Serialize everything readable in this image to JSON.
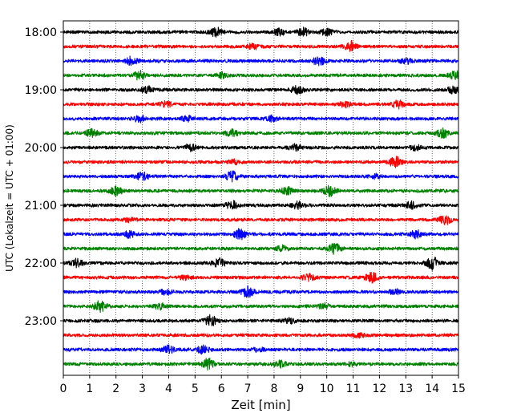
{
  "chart_data": {
    "type": "line",
    "title": "",
    "xlabel": "Zeit  [min]",
    "ylabel": "UTC (Lokalzeit = UTC + 01:00)",
    "xlim": [
      0,
      15
    ],
    "xticks": [
      0,
      1,
      2,
      3,
      4,
      5,
      6,
      7,
      8,
      9,
      10,
      11,
      12,
      13,
      14,
      15
    ],
    "x_grid": true,
    "y_grid": false,
    "yticks": [
      {
        "label": "18:00",
        "trace": 0
      },
      {
        "label": "19:00",
        "trace": 4
      },
      {
        "label": "20:00",
        "trace": 8
      },
      {
        "label": "21:00",
        "trace": 12
      },
      {
        "label": "22:00",
        "trace": 16
      },
      {
        "label": "23:00",
        "trace": 20
      }
    ],
    "trace_colors": [
      "#000000",
      "#ff0000",
      "#0000ff",
      "#008000"
    ],
    "traces": [
      {
        "color": "#000000",
        "bursts": [
          [
            5.8,
            0.7
          ],
          [
            8.2,
            0.5
          ],
          [
            9.1,
            0.6
          ],
          [
            10.0,
            0.5
          ]
        ]
      },
      {
        "color": "#ff0000",
        "bursts": [
          [
            10.9,
            0.8
          ],
          [
            7.2,
            0.4
          ]
        ]
      },
      {
        "color": "#0000ff",
        "bursts": [
          [
            2.6,
            0.6
          ],
          [
            9.7,
            0.7
          ],
          [
            13.0,
            0.4
          ]
        ]
      },
      {
        "color": "#008000",
        "bursts": [
          [
            2.9,
            0.7
          ],
          [
            6.0,
            0.4
          ],
          [
            14.9,
            0.6
          ]
        ]
      },
      {
        "color": "#000000",
        "bursts": [
          [
            3.2,
            0.5
          ],
          [
            8.9,
            0.6
          ],
          [
            14.8,
            0.5
          ]
        ]
      },
      {
        "color": "#ff0000",
        "bursts": [
          [
            3.9,
            0.4
          ],
          [
            10.7,
            0.4
          ],
          [
            12.7,
            0.6
          ]
        ]
      },
      {
        "color": "#0000ff",
        "bursts": [
          [
            2.9,
            0.5
          ],
          [
            4.7,
            0.4
          ],
          [
            7.9,
            0.4
          ]
        ]
      },
      {
        "color": "#008000",
        "bursts": [
          [
            1.1,
            0.6
          ],
          [
            6.4,
            0.5
          ],
          [
            14.4,
            0.7
          ]
        ]
      },
      {
        "color": "#000000",
        "bursts": [
          [
            4.8,
            0.5
          ],
          [
            8.8,
            0.5
          ],
          [
            13.4,
            0.4
          ]
        ]
      },
      {
        "color": "#ff0000",
        "bursts": [
          [
            12.6,
            0.8
          ],
          [
            6.5,
            0.3
          ]
        ]
      },
      {
        "color": "#0000ff",
        "bursts": [
          [
            3.0,
            0.6
          ],
          [
            6.4,
            0.8
          ],
          [
            11.8,
            0.3
          ]
        ]
      },
      {
        "color": "#008000",
        "bursts": [
          [
            2.0,
            0.7
          ],
          [
            10.1,
            0.8
          ],
          [
            8.5,
            0.5
          ]
        ]
      },
      {
        "color": "#000000",
        "bursts": [
          [
            6.4,
            0.7
          ],
          [
            8.9,
            0.5
          ],
          [
            13.2,
            0.5
          ]
        ]
      },
      {
        "color": "#ff0000",
        "bursts": [
          [
            14.5,
            0.7
          ],
          [
            2.5,
            0.3
          ]
        ]
      },
      {
        "color": "#0000ff",
        "bursts": [
          [
            2.5,
            0.5
          ],
          [
            6.7,
            0.8
          ],
          [
            13.4,
            0.6
          ]
        ]
      },
      {
        "color": "#008000",
        "bursts": [
          [
            10.3,
            0.8
          ],
          [
            8.3,
            0.4
          ]
        ]
      },
      {
        "color": "#000000",
        "bursts": [
          [
            0.5,
            0.6
          ],
          [
            5.9,
            0.7
          ],
          [
            14.0,
            1.0
          ]
        ]
      },
      {
        "color": "#ff0000",
        "bursts": [
          [
            9.3,
            0.5
          ],
          [
            11.7,
            0.7
          ],
          [
            4.6,
            0.3
          ]
        ]
      },
      {
        "color": "#0000ff",
        "bursts": [
          [
            7.0,
            0.8
          ],
          [
            3.9,
            0.4
          ],
          [
            12.6,
            0.3
          ]
        ]
      },
      {
        "color": "#008000",
        "bursts": [
          [
            1.4,
            0.8
          ],
          [
            3.7,
            0.4
          ],
          [
            9.9,
            0.4
          ]
        ]
      },
      {
        "color": "#000000",
        "bursts": [
          [
            5.6,
            0.8
          ],
          [
            8.6,
            0.4
          ]
        ]
      },
      {
        "color": "#ff0000",
        "bursts": [
          [
            11.2,
            0.3
          ]
        ]
      },
      {
        "color": "#0000ff",
        "bursts": [
          [
            4.0,
            0.6
          ],
          [
            5.3,
            0.6
          ],
          [
            7.4,
            0.3
          ]
        ]
      },
      {
        "color": "#008000",
        "bursts": [
          [
            5.5,
            0.8
          ],
          [
            8.2,
            0.5
          ],
          [
            11.0,
            0.3
          ]
        ]
      }
    ]
  }
}
